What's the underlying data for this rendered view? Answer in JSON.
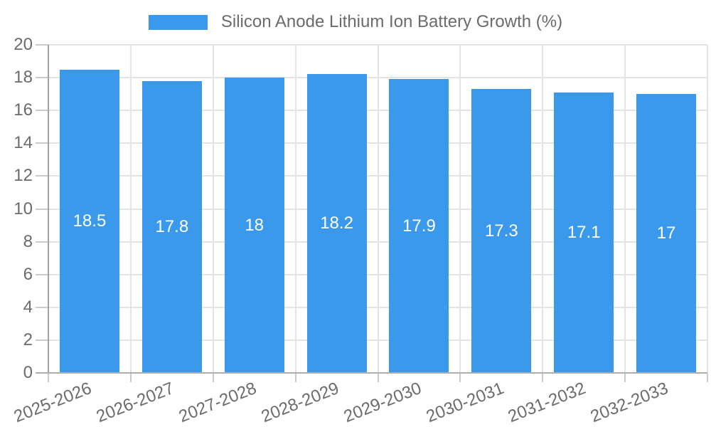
{
  "chart_data": {
    "type": "bar",
    "title": "",
    "legend_label": "Silicon Anode Lithium Ion Battery Growth (%)",
    "legend_position": "top",
    "categories": [
      "2025-2026",
      "2026-2027",
      "2027-2028",
      "2028-2029",
      "2029-2030",
      "2030-2031",
      "2031-2032",
      "2032-2033"
    ],
    "values": [
      18.5,
      17.8,
      18,
      18.2,
      17.9,
      17.3,
      17.1,
      17
    ],
    "xlabel": "",
    "ylabel": "",
    "ylim": [
      0,
      20
    ],
    "yticks": [
      0,
      2,
      4,
      6,
      8,
      10,
      12,
      14,
      16,
      18,
      20
    ],
    "grid": true,
    "colors": {
      "bar": "#3b99ec",
      "bar_label": "#ffffff",
      "axis_text": "#6b6b6b",
      "gridline": "#e4e4e4",
      "tick": "#cbcbcb",
      "y_axis_line": "#a2a2a2",
      "x_axis_line": "#aeaeae",
      "background": "#ffffff"
    }
  }
}
